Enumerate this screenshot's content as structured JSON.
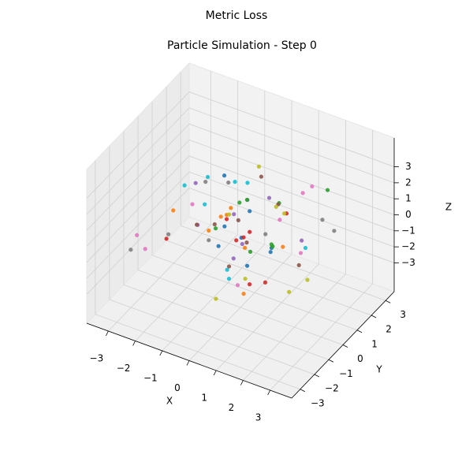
{
  "chart_data": {
    "type": "scatter3d",
    "title": "Metric Loss",
    "subtitle": "Particle Simulation - Step 0",
    "xlabel": "X",
    "ylabel": "Y",
    "zlabel": "Z",
    "xlim": [
      -3.8,
      3.8
    ],
    "ylim": [
      -3.6,
      3.6
    ],
    "zlim": [
      -4.8,
      4.8
    ],
    "xticks": [
      {
        "value": -3,
        "label": "−3"
      },
      {
        "value": -2,
        "label": "−2"
      },
      {
        "value": -1,
        "label": "−1"
      },
      0,
      1,
      2,
      3
    ],
    "yticks": [
      {
        "value": -3,
        "label": "−3"
      },
      {
        "value": -2,
        "label": "−2"
      },
      {
        "value": -1,
        "label": "−1"
      },
      0,
      1,
      2,
      3
    ],
    "zticks": [
      {
        "value": -3,
        "label": "−3"
      },
      {
        "value": -2,
        "label": "−2"
      },
      {
        "value": -1,
        "label": "−1"
      },
      0,
      1,
      2,
      3
    ],
    "grid": true,
    "color_cycle": [
      "#1f77b4",
      "#ff7f0e",
      "#2ca02c",
      "#d62728",
      "#9467bd",
      "#8c564b",
      "#e377c2",
      "#7f7f7f",
      "#bcbd22",
      "#17becf"
    ],
    "x": [
      0.3,
      -1.2,
      0.8,
      1.5,
      -0.4,
      0.1,
      -2.1,
      2.3,
      0.6,
      -0.9,
      1.1,
      -1.7,
      0.2,
      -0.3,
      1.9,
      -0.6,
      0.9,
      -1.4,
      2.8,
      -2.6,
      0.4,
      -0.1,
      1.3,
      -1.0,
      0.7,
      -0.5,
      1.6,
      -2.3,
      0.0,
      1.0,
      -0.8,
      2.1,
      -1.5,
      0.5,
      -0.2,
      1.4,
      -3.1,
      3.0,
      0.2,
      -1.1,
      0.8,
      -0.7,
      1.7,
      -1.9,
      0.1,
      -0.4,
      2.5,
      -2.8,
      0.9,
      -0.6,
      1.2,
      -1.3,
      0.3,
      0.6,
      -0.9,
      1.8,
      -2.0,
      0.4,
      -0.1,
      2.2,
      -1.6,
      0.7,
      -0.3,
      1.5,
      -2.4,
      0.0,
      1.1,
      -0.5,
      2.7,
      -1.8,
      0.5,
      -1.2,
      1.0,
      -0.2,
      0.8,
      -2.2,
      1.3,
      -0.7,
      0.2,
      -1.0
    ],
    "y": [
      -0.5,
      0.9,
      1.2,
      -1.1,
      0.3,
      -2.0,
      0.6,
      1.4,
      -0.8,
      2.2,
      0.1,
      -1.5,
      1.8,
      -0.4,
      0.7,
      2.6,
      -1.9,
      0.2,
      -0.6,
      1.0,
      -2.3,
      0.5,
      -0.2,
      1.6,
      -1.2,
      0.8,
      2.0,
      -0.7,
      1.3,
      -2.7,
      0.4,
      -1.0,
      1.1,
      -0.3,
      2.4,
      0.0,
      -1.4,
      0.9,
      -2.1,
      1.7,
      0.6,
      -0.9,
      2.9,
      -1.6,
      0.3,
      1.2,
      -0.5,
      -2.4,
      0.8,
      0.2,
      -1.8,
      1.5,
      -0.1,
      2.1,
      -1.3,
      0.7,
      -2.9,
      1.0,
      -0.6,
      0.4,
      1.9,
      -1.1,
      0.5,
      -2.2,
      1.4,
      -0.8,
      2.3,
      0.1,
      -1.7,
      0.9,
      -0.3,
      1.6,
      -1.2,
      0.6,
      -2.0,
      1.1,
      0.3,
      -0.9,
      2.7,
      -0.4
    ],
    "z": [
      0.2,
      -0.7,
      1.1,
      -1.3,
      0.5,
      2.3,
      -0.2,
      0.8,
      -1.9,
      0.4,
      -0.5,
      1.6,
      -2.4,
      0.9,
      -0.1,
      0.6,
      -1.1,
      2.0,
      -0.8,
      0.3,
      1.4,
      -1.6,
      0.0,
      -2.7,
      0.7,
      -0.4,
      1.9,
      -1.0,
      2.8,
      0.1,
      -0.6,
      1.2,
      -1.8,
      0.5,
      -0.3,
      2.5,
      -0.9,
      1.0,
      -2.2,
      0.8,
      -1.4,
      0.4,
      0.9,
      -0.2,
      1.7,
      -2.1,
      0.6,
      -0.7,
      1.3,
      -3.0,
      0.2,
      -1.2,
      2.2,
      -0.5,
      1.0,
      -1.7,
      0.3,
      -0.9,
      1.5,
      -0.1,
      0.7,
      -2.5,
      1.1,
      -0.4,
      0.2,
      -1.5,
      0.9,
      2.6,
      -0.6,
      -0.3,
      1.8,
      -0.8,
      0.4,
      -1.1,
      0.6,
      -2.0,
      1.2,
      -0.2,
      -1.3,
      3.1
    ]
  }
}
